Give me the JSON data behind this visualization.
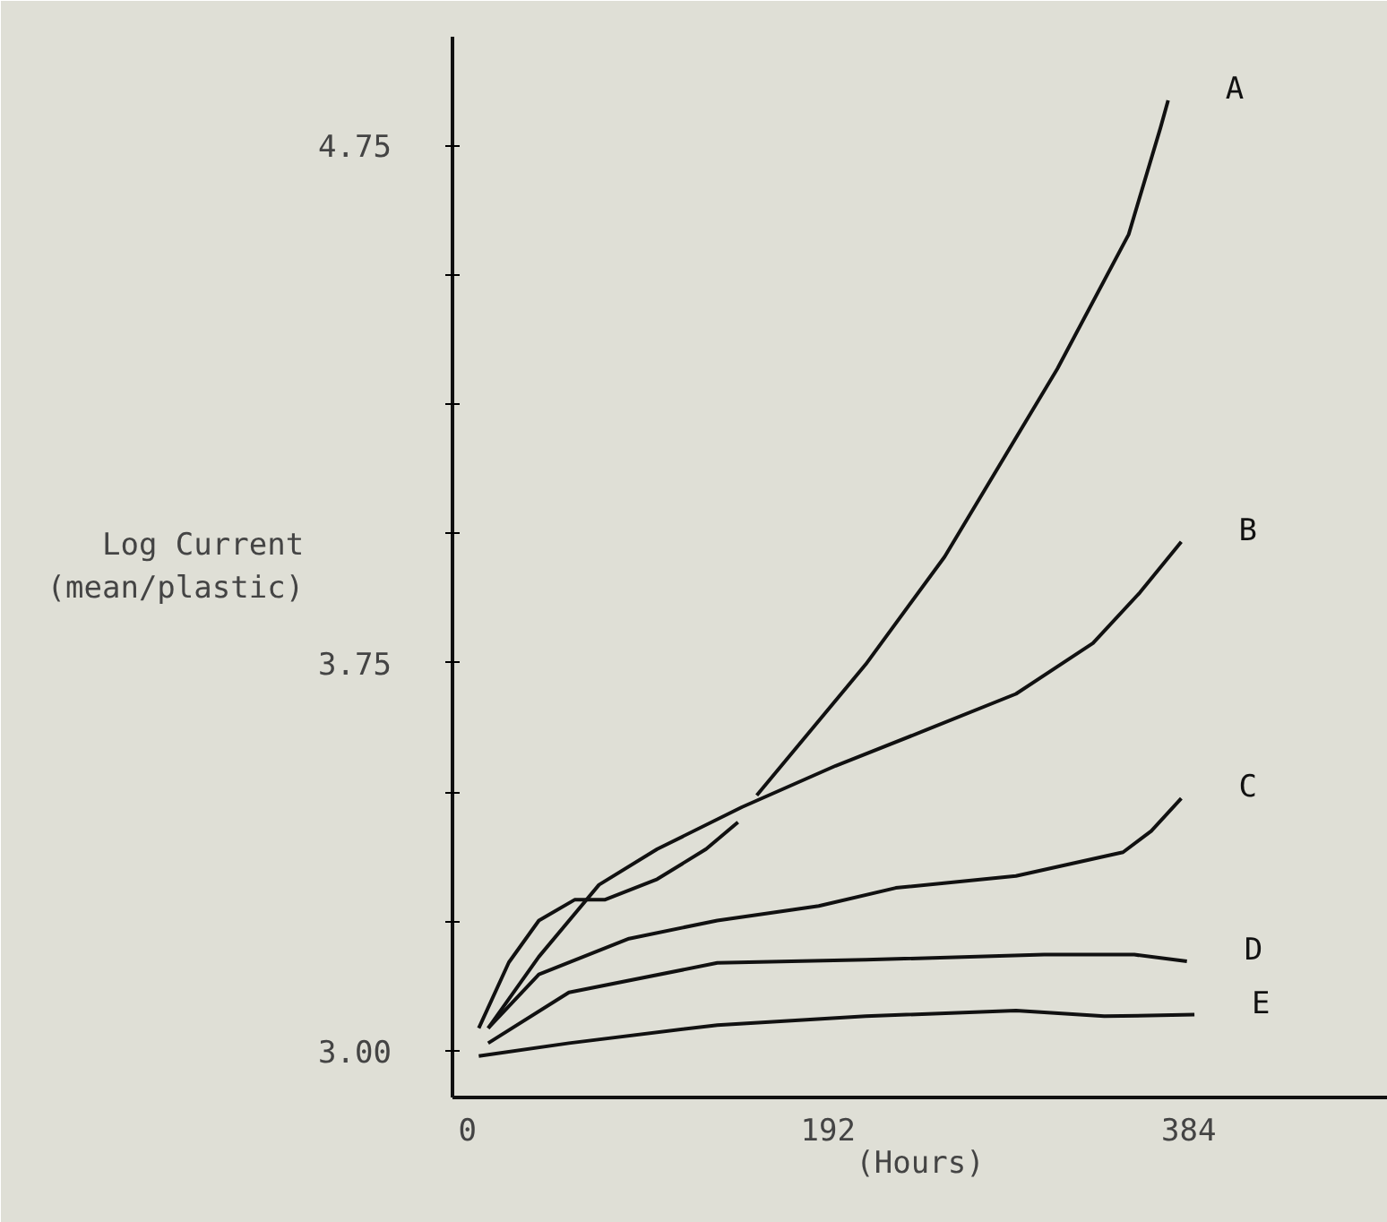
{
  "chart_data": {
    "type": "line",
    "xlabel": "(Hours)",
    "ylabel": "Log Current\n(mean/plastic)",
    "xlim": [
      -8,
      490
    ],
    "ylim": [
      2.91,
      4.96
    ],
    "xticks": [
      0,
      192,
      384
    ],
    "yticks": [
      "3.00",
      {
        "value": 3.25,
        "label": null
      },
      {
        "value": 3.5,
        "label": null
      },
      {
        "value": 3.75,
        "label": "3.75"
      },
      {
        "value": 4.0,
        "label": null
      },
      {
        "value": 4.25,
        "label": null
      },
      {
        "value": 4.5,
        "label": null
      },
      {
        "value": 4.75,
        "label": "4.75"
      }
    ],
    "grid": false,
    "marker": "none",
    "line_style": "solid",
    "series": [
      {
        "name": "A",
        "color": "#111111",
        "x": [
          6,
          22,
          38,
          57,
          73,
          101,
          127,
          144,
          149,
          154,
          212,
          254,
          314,
          352,
          369,
          373
        ],
        "values": [
          3.044,
          3.171,
          3.252,
          3.292,
          3.292,
          3.332,
          3.39,
          3.442,
          null,
          3.494,
          3.747,
          3.955,
          4.318,
          4.578,
          4.785,
          4.837
        ]
      },
      {
        "name": "B",
        "color": "#111111",
        "x": [
          11,
          38,
          70,
          101,
          146,
          196,
          244,
          292,
          333,
          358,
          380
        ],
        "values": [
          3.044,
          3.182,
          3.321,
          3.39,
          3.471,
          3.551,
          3.62,
          3.69,
          3.788,
          3.886,
          3.984
        ]
      },
      {
        "name": "C",
        "color": "#111111",
        "x": [
          11,
          38,
          86,
          133,
          187,
          228,
          292,
          349,
          364,
          380
        ],
        "values": [
          3.044,
          3.148,
          3.217,
          3.252,
          3.28,
          3.315,
          3.338,
          3.384,
          3.425,
          3.488
        ]
      },
      {
        "name": "D",
        "color": "#111111",
        "x": [
          11,
          54,
          133,
          212,
          307,
          355,
          383
        ],
        "values": [
          3.015,
          3.113,
          3.17,
          3.176,
          3.186,
          3.186,
          3.173
        ]
      },
      {
        "name": "E",
        "color": "#111111",
        "x": [
          6,
          54,
          133,
          212,
          292,
          339,
          387
        ],
        "values": [
          2.99,
          3.015,
          3.05,
          3.067,
          3.078,
          3.067,
          3.07
        ]
      }
    ]
  }
}
